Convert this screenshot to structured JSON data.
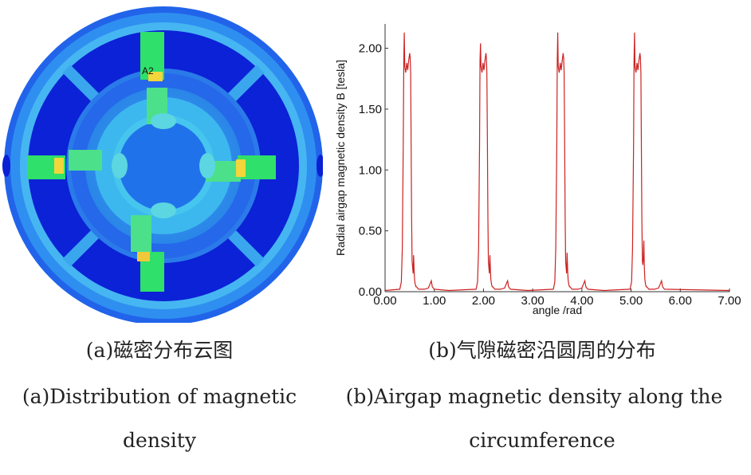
{
  "figure_a": {
    "annotation": "A2",
    "caption_cn": "(a)磁密分布云图",
    "caption_en_line1": "(a)Distribution of magnetic",
    "caption_en_line2": "density",
    "colors": {
      "background_blue": "#1f5fe8",
      "deep_blue": "#0b1fd4",
      "light_blue": "#38a6f0",
      "cyan": "#48d8ef",
      "green": "#2fe06a",
      "yellow": "#f2d63b"
    }
  },
  "figure_b": {
    "caption_cn": "(b)气隙磁密沿圆周的分布",
    "caption_en_line1": "(b)Airgap magnetic density along the",
    "caption_en_line2": "circumference"
  },
  "chart_data": {
    "type": "line",
    "xlabel": "angle /rad",
    "ylabel": "Radial airgap magnetic density B [tesla]",
    "xlim": [
      0,
      7
    ],
    "ylim": [
      0,
      2.2
    ],
    "x_ticks": [
      "0.00",
      "1.00",
      "2.00",
      "3.00",
      "4.00",
      "5.00",
      "6.00",
      "7.00"
    ],
    "y_ticks": [
      "0.00",
      "0.50",
      "1.00",
      "1.50",
      "2.00"
    ],
    "line_color": "#cc2222",
    "series": [
      {
        "x": [
          0.0,
          0.3,
          0.33,
          0.35,
          0.37,
          0.38,
          0.39,
          0.4,
          0.42,
          0.44,
          0.46,
          0.48,
          0.5,
          0.51,
          0.52,
          0.53,
          0.54,
          0.55,
          0.56,
          0.57,
          0.58,
          0.59,
          0.6,
          0.61,
          0.62,
          0.63,
          0.64,
          0.66,
          0.68,
          0.72,
          0.8,
          0.88,
          0.92,
          0.94,
          0.96,
          1.0,
          1.3,
          1.85,
          1.88,
          1.9,
          1.92,
          1.93,
          1.94,
          1.95,
          1.97,
          1.99,
          2.01,
          2.03,
          2.05,
          2.06,
          2.07,
          2.08,
          2.09,
          2.1,
          2.11,
          2.12,
          2.13,
          2.14,
          2.15,
          2.16,
          2.17,
          2.18,
          2.19,
          2.21,
          2.23,
          2.27,
          2.35,
          2.43,
          2.47,
          2.49,
          2.51,
          2.55,
          2.9,
          3.42,
          3.45,
          3.47,
          3.49,
          3.5,
          3.51,
          3.52,
          3.54,
          3.56,
          3.58,
          3.6,
          3.62,
          3.63,
          3.64,
          3.65,
          3.66,
          3.67,
          3.68,
          3.69,
          3.7,
          3.71,
          3.72,
          3.73,
          3.74,
          3.75,
          3.76,
          3.78,
          3.8,
          3.84,
          3.92,
          4.0,
          4.04,
          4.06,
          4.08,
          4.12,
          4.45,
          4.98,
          5.01,
          5.03,
          5.05,
          5.06,
          5.07,
          5.08,
          5.1,
          5.12,
          5.14,
          5.16,
          5.18,
          5.19,
          5.2,
          5.21,
          5.22,
          5.23,
          5.24,
          5.25,
          5.26,
          5.27,
          5.28,
          5.29,
          5.3,
          5.31,
          5.32,
          5.34,
          5.36,
          5.4,
          5.48,
          5.56,
          5.6,
          5.62,
          5.64,
          5.68,
          7.0
        ],
        "y": [
          0.01,
          0.02,
          0.08,
          0.35,
          1.2,
          1.9,
          2.13,
          1.85,
          1.8,
          1.88,
          1.82,
          1.9,
          1.96,
          1.92,
          1.8,
          1.2,
          0.6,
          0.25,
          0.2,
          0.15,
          0.3,
          0.18,
          0.1,
          0.07,
          0.05,
          0.04,
          0.04,
          0.03,
          0.02,
          0.02,
          0.02,
          0.03,
          0.07,
          0.09,
          0.04,
          0.02,
          0.01,
          0.02,
          0.08,
          0.35,
          1.2,
          1.9,
          2.04,
          1.85,
          1.8,
          1.88,
          1.82,
          1.9,
          1.96,
          1.92,
          1.8,
          1.2,
          0.6,
          0.25,
          0.2,
          0.15,
          0.3,
          0.18,
          0.1,
          0.07,
          0.05,
          0.04,
          0.04,
          0.03,
          0.02,
          0.02,
          0.02,
          0.03,
          0.07,
          0.09,
          0.04,
          0.02,
          0.01,
          0.02,
          0.08,
          0.35,
          1.2,
          1.9,
          2.13,
          1.85,
          1.8,
          1.88,
          1.82,
          1.9,
          1.96,
          1.92,
          1.8,
          1.2,
          0.6,
          0.25,
          0.2,
          0.15,
          0.32,
          0.18,
          0.1,
          0.07,
          0.05,
          0.04,
          0.04,
          0.03,
          0.02,
          0.02,
          0.02,
          0.03,
          0.07,
          0.09,
          0.04,
          0.02,
          0.01,
          0.02,
          0.08,
          0.35,
          1.2,
          1.9,
          2.13,
          1.85,
          1.8,
          1.88,
          1.82,
          1.9,
          1.96,
          1.92,
          1.8,
          1.2,
          0.6,
          0.25,
          0.22,
          0.28,
          0.42,
          0.2,
          0.1,
          0.07,
          0.05,
          0.04,
          0.04,
          0.03,
          0.02,
          0.02,
          0.02,
          0.03,
          0.07,
          0.09,
          0.04,
          0.02,
          0.01
        ]
      }
    ]
  }
}
